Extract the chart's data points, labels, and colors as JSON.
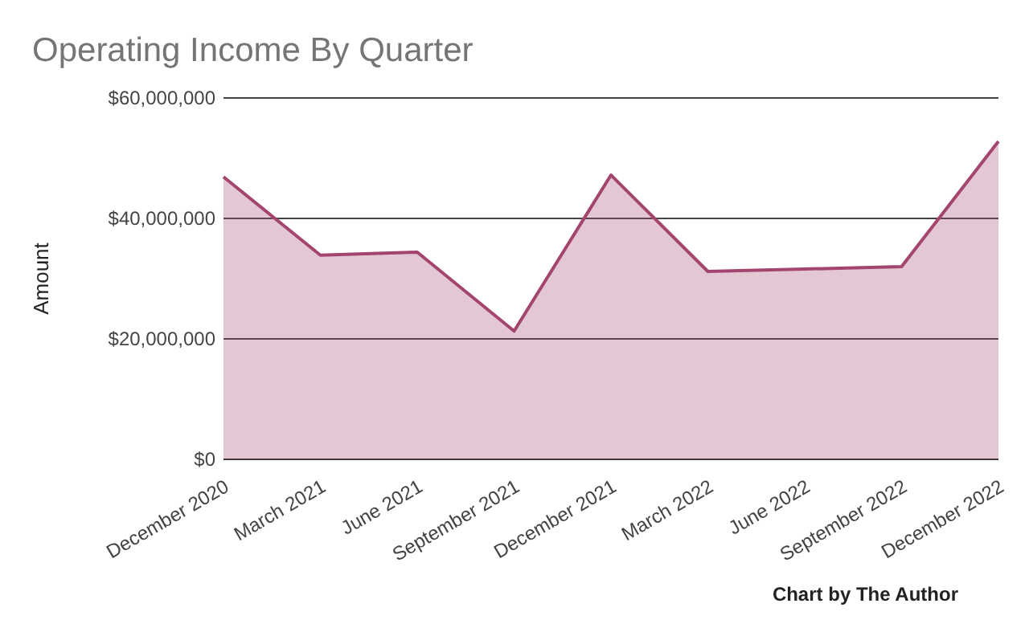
{
  "chart_data": {
    "type": "area",
    "title": "Operating Income By Quarter",
    "ylabel": "Amount",
    "categories": [
      "December 2020",
      "March 2021",
      "June 2021",
      "September 2021",
      "December 2021",
      "March 2022",
      "June 2022",
      "September 2022",
      "December 2022"
    ],
    "series": [
      {
        "color": "#a3456f",
        "values": [
          46900000,
          33900000,
          34400000,
          21300000,
          47200000,
          31200000,
          31600000,
          32000000,
          52800000
        ]
      }
    ],
    "ylim": [
      0,
      60000000
    ],
    "yticks": [
      {
        "value": 0,
        "label": "$0"
      },
      {
        "value": 20000000,
        "label": "$20,000,000"
      },
      {
        "value": 40000000,
        "label": "$40,000,000"
      },
      {
        "value": 60000000,
        "label": "$60,000,000"
      }
    ],
    "grid": "y",
    "annotations": [
      "Chart by The Author"
    ]
  }
}
